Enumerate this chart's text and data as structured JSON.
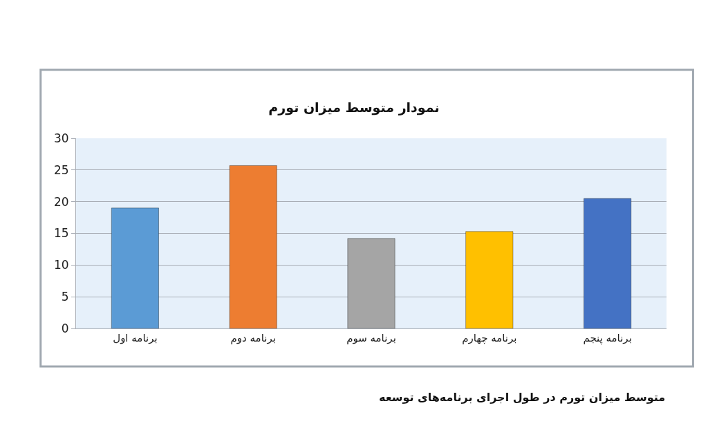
{
  "chart_data": {
    "type": "bar",
    "title": "نمودار متوسط میزان تورم",
    "categories": [
      "برنامه اول",
      "برنامه دوم",
      "برنامه سوم",
      "برنامه چهارم",
      "برنامه پنجم"
    ],
    "values": [
      19,
      25.7,
      14.2,
      15.3,
      20.5
    ],
    "colors": [
      "#5b9bd5",
      "#ed7d31",
      "#a5a5a5",
      "#ffc000",
      "#4472c4"
    ],
    "ylim": [
      0,
      30
    ],
    "yticks": [
      0,
      5,
      10,
      15,
      20,
      25,
      30
    ],
    "grid": "y",
    "annotations": [
      "متوسط میزان تورم در طول اجرای برنامه‌های توسعه"
    ]
  }
}
